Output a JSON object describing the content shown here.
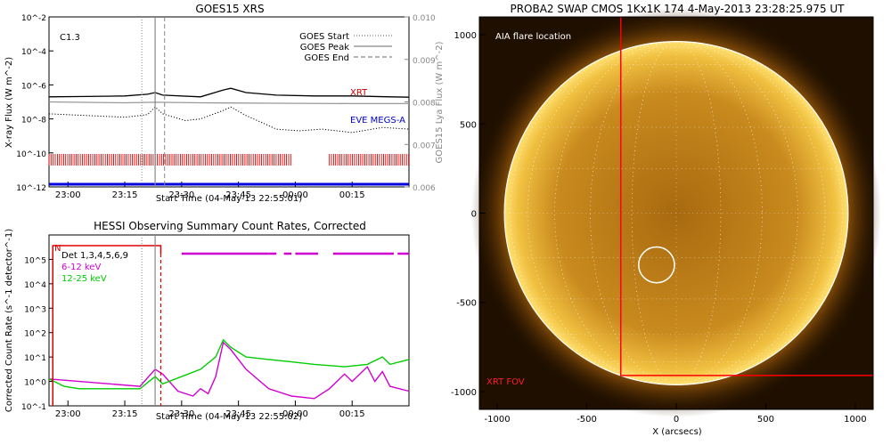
{
  "chart_data": [
    {
      "type": "line",
      "title": "GOES15 XRS",
      "annotation": "C1.3",
      "xlabel": "Start Time (04-May-13 22:55:01)",
      "ylabel_left": "X-ray Flux (W m^-2)",
      "ylabel_right": "GOES15 Lya Flux (W m^-2)",
      "x_ticks": [
        "23:00",
        "23:15",
        "23:30",
        "23:45",
        "00:00",
        "00:15"
      ],
      "y_ticks_left": [
        "10^-2",
        "10^-4",
        "10^-6",
        "10^-8",
        "10^-10",
        "10^-12"
      ],
      "y_ticks_right": [
        "0.010",
        "0.009",
        "0.008",
        "0.007",
        "0.006"
      ],
      "legend": [
        {
          "label": "GOES Start",
          "style": "dotted"
        },
        {
          "label": "GOES Peak",
          "style": "solid"
        },
        {
          "label": "GOES End",
          "style": "dashed"
        }
      ],
      "series_labels": [
        {
          "label": "XRT",
          "color": "#cc0000"
        },
        {
          "label": "EVE MEGS-A",
          "color": "#0000cc"
        }
      ],
      "markers_min": {
        "start": 24.5,
        "peak": 28,
        "end": 30.5
      },
      "xrt_coverage_min": [
        [
          0,
          64
        ],
        [
          74,
          95
        ]
      ],
      "xrt_upper_log": [
        [
          0,
          -6.7
        ],
        [
          10,
          -6.68
        ],
        [
          20,
          -6.65
        ],
        [
          26,
          -6.55
        ],
        [
          28,
          -6.45
        ],
        [
          30,
          -6.6
        ],
        [
          40,
          -6.7
        ],
        [
          46,
          -6.3
        ],
        [
          48,
          -6.2
        ],
        [
          52,
          -6.45
        ],
        [
          60,
          -6.6
        ],
        [
          70,
          -6.65
        ],
        [
          80,
          -6.65
        ],
        [
          90,
          -6.7
        ],
        [
          95,
          -6.72
        ]
      ],
      "xrt_lower_log": [
        [
          0,
          -7.0
        ],
        [
          20,
          -7.05
        ],
        [
          28,
          -7.02
        ],
        [
          40,
          -7.05
        ],
        [
          60,
          -7.08
        ],
        [
          80,
          -7.1
        ],
        [
          95,
          -7.1
        ]
      ],
      "eve_log": [
        [
          0,
          -7.7
        ],
        [
          10,
          -7.8
        ],
        [
          20,
          -7.9
        ],
        [
          26,
          -7.75
        ],
        [
          28,
          -7.3
        ],
        [
          30,
          -7.7
        ],
        [
          36,
          -8.1
        ],
        [
          40,
          -8.0
        ],
        [
          46,
          -7.5
        ],
        [
          48,
          -7.3
        ],
        [
          52,
          -7.8
        ],
        [
          56,
          -8.2
        ],
        [
          60,
          -8.6
        ],
        [
          66,
          -8.7
        ],
        [
          72,
          -8.6
        ],
        [
          80,
          -8.8
        ],
        [
          88,
          -8.5
        ],
        [
          95,
          -8.6
        ]
      ]
    },
    {
      "type": "line",
      "title": "HESSI Observing Summary Count Rates, Corrected",
      "xlabel": "Start Time (04-May-13 22:55:02)",
      "ylabel": "Corrected Count Rate (s^-1 detector^-1)",
      "x_ticks": [
        "23:00",
        "23:15",
        "23:30",
        "23:45",
        "00:00",
        "00:15"
      ],
      "y_ticks": [
        "10^5",
        "10^4",
        "10^3",
        "10^2",
        "10^1",
        "10^0",
        "10^-1"
      ],
      "legend_lines": [
        {
          "label": "Det 1,3,4,5,6,9",
          "color": "#000000"
        },
        {
          "label": "6-12 keV",
          "color": "#d000d0"
        },
        {
          "label": "12-25 keV",
          "color": "#00cc00"
        }
      ],
      "flag_label": "N",
      "series": [
        {
          "name": "6-12 keV",
          "color": "#d000d0",
          "log_values": [
            [
              0,
              0.1
            ],
            [
              8,
              0.0
            ],
            [
              16,
              -0.1
            ],
            [
              24,
              -0.2
            ],
            [
              28,
              0.5
            ],
            [
              30,
              0.3
            ],
            [
              34,
              -0.4
            ],
            [
              38,
              -0.6
            ],
            [
              40,
              -0.3
            ],
            [
              42,
              -0.5
            ],
            [
              44,
              0.2
            ],
            [
              46,
              1.6
            ],
            [
              48,
              1.3
            ],
            [
              52,
              0.5
            ],
            [
              58,
              -0.3
            ],
            [
              64,
              -0.6
            ],
            [
              70,
              -0.7
            ],
            [
              74,
              -0.3
            ],
            [
              78,
              0.3
            ],
            [
              80,
              0.0
            ],
            [
              84,
              0.6
            ],
            [
              86,
              0.0
            ],
            [
              88,
              0.4
            ],
            [
              90,
              -0.2
            ],
            [
              95,
              -0.4
            ]
          ]
        },
        {
          "name": "12-25 keV",
          "color": "#00cc00",
          "log_values": [
            [
              0,
              0.1
            ],
            [
              4,
              -0.2
            ],
            [
              8,
              -0.3
            ],
            [
              16,
              -0.3
            ],
            [
              24,
              -0.3
            ],
            [
              28,
              0.2
            ],
            [
              30,
              -0.1
            ],
            [
              40,
              0.5
            ],
            [
              44,
              1.0
            ],
            [
              46,
              1.7
            ],
            [
              48,
              1.4
            ],
            [
              52,
              1.0
            ],
            [
              58,
              0.9
            ],
            [
              64,
              0.8
            ],
            [
              70,
              0.7
            ],
            [
              78,
              0.6
            ],
            [
              84,
              0.7
            ],
            [
              88,
              1.0
            ],
            [
              90,
              0.7
            ],
            [
              95,
              0.9
            ]
          ]
        }
      ],
      "magenta_coverage_min": [
        [
          35,
          58
        ],
        [
          58,
          60
        ],
        [
          62,
          64
        ],
        [
          65,
          71
        ],
        [
          75,
          91
        ],
        [
          92,
          95
        ]
      ]
    },
    {
      "type": "scatter",
      "title": "PROBA2 SWAP CMOS 1Kx1K 174  4-May-2013 23:28:25.975 UT",
      "xlabel": "X (arcsecs)",
      "x_ticks": [
        -1000,
        -500,
        0,
        500,
        1000
      ],
      "y_ticks": [
        1000,
        500,
        0,
        -500,
        -1000
      ],
      "xlim": [
        -1100,
        1100
      ],
      "ylim": [
        -1100,
        1100
      ],
      "solar_radius_arcsec": 960,
      "aia_flare": {
        "label": "AIA flare location",
        "x": -110,
        "y": -290,
        "r": 100
      },
      "xrt_fov": {
        "label": "XRT FOV",
        "x0": -310,
        "x1": 1100,
        "y0": -910,
        "y1": 1100
      }
    }
  ]
}
